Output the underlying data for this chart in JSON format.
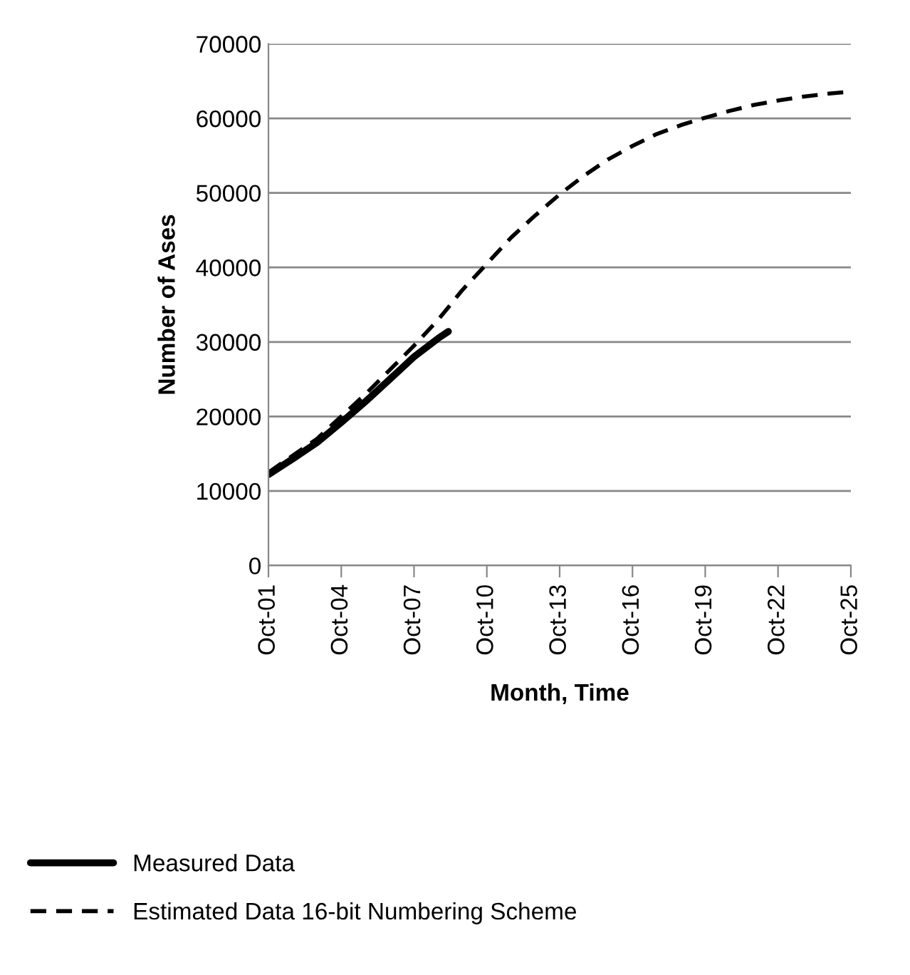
{
  "chart_data": {
    "type": "line",
    "xlabel": "Month, Time",
    "ylabel": "Number of Ases",
    "ylim": [
      0,
      70000
    ],
    "yticks": [
      0,
      10000,
      20000,
      30000,
      40000,
      50000,
      60000,
      70000
    ],
    "xlim": [
      "2001-10",
      "2025-10"
    ],
    "xticks": [
      {
        "value": "2001-10",
        "label": "Oct-01"
      },
      {
        "value": "2004-10",
        "label": "Oct-04"
      },
      {
        "value": "2007-10",
        "label": "Oct-07"
      },
      {
        "value": "2010-10",
        "label": "Oct-10"
      },
      {
        "value": "2013-10",
        "label": "Oct-13"
      },
      {
        "value": "2016-10",
        "label": "Oct-16"
      },
      {
        "value": "2019-10",
        "label": "Oct-19"
      },
      {
        "value": "2022-10",
        "label": "Oct-22"
      },
      {
        "value": "2025-10",
        "label": "Oct-25"
      }
    ],
    "grid": "y",
    "legend": "bottom",
    "series": [
      {
        "name": "Measured Data",
        "color": "#000000",
        "line_style": "solid",
        "x": [
          "2001-10",
          "2002-10",
          "2003-10",
          "2004-10",
          "2005-10",
          "2006-10",
          "2007-10",
          "2008-10",
          "2009-03"
        ],
        "values": [
          12200,
          14300,
          16500,
          19200,
          22000,
          25000,
          28000,
          30500,
          31400
        ]
      },
      {
        "name": "Estimated Data 16-bit Numbering Scheme",
        "color": "#000000",
        "line_style": "dashed",
        "x": [
          "2001-10",
          "2003-10",
          "2005-10",
          "2007-10",
          "2008-10",
          "2009-10",
          "2010-10",
          "2011-10",
          "2012-10",
          "2013-10",
          "2014-10",
          "2015-10",
          "2016-10",
          "2017-10",
          "2018-10",
          "2019-10",
          "2020-10",
          "2021-10",
          "2022-10",
          "2023-10",
          "2024-10",
          "2025-10"
        ],
        "values": [
          12500,
          17000,
          23000,
          29500,
          33000,
          37000,
          40500,
          44000,
          47000,
          49800,
          52300,
          54500,
          56300,
          57900,
          59100,
          60100,
          61000,
          61800,
          62400,
          62900,
          63300,
          63600
        ]
      }
    ]
  }
}
